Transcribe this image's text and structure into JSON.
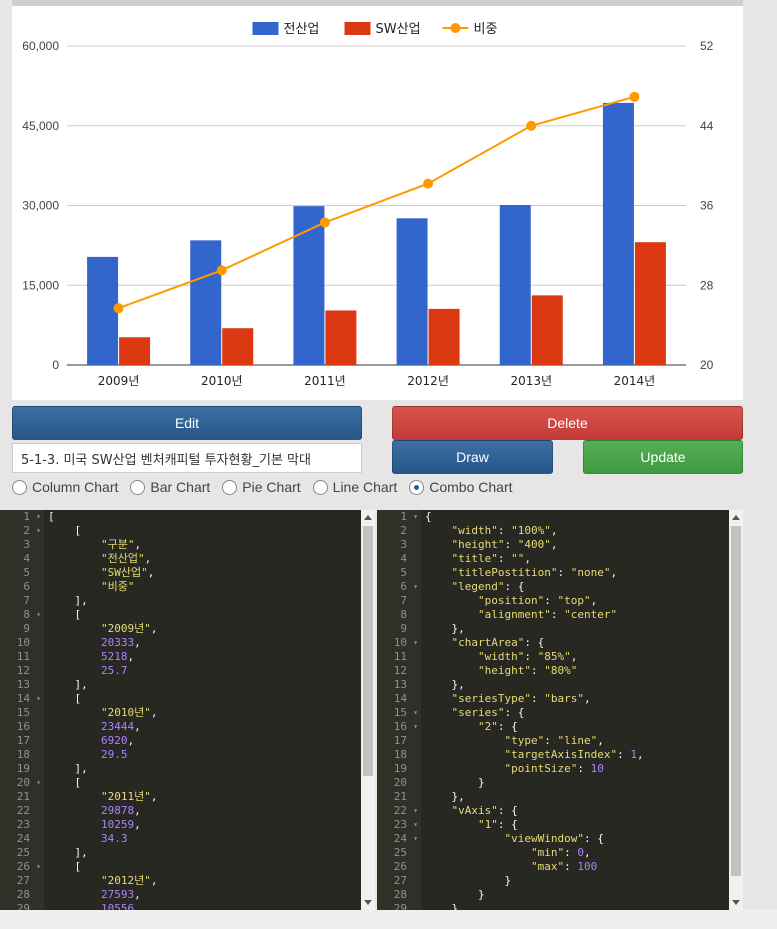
{
  "chart_data": {
    "type": "combo",
    "categories": [
      "2009년",
      "2010년",
      "2011년",
      "2012년",
      "2013년",
      "2014년"
    ],
    "series": [
      {
        "name": "전산업",
        "type": "bar",
        "axis": "left",
        "color": "#3366cc",
        "values": [
          20333,
          23444,
          29878,
          27593,
          30100,
          49300
        ]
      },
      {
        "name": "SW산업",
        "type": "bar",
        "axis": "left",
        "color": "#dc3912",
        "values": [
          5218,
          6920,
          10259,
          10556,
          13100,
          23100
        ]
      },
      {
        "name": "비중",
        "type": "line",
        "axis": "right",
        "color": "#ff9900",
        "values": [
          25.7,
          29.5,
          34.3,
          38.2,
          44.0,
          46.9
        ]
      }
    ],
    "left_axis": {
      "min": 0,
      "max": 60000,
      "ticks": [
        "0",
        "15,000",
        "30,000",
        "45,000",
        "60,000"
      ],
      "tick_values": [
        0,
        15000,
        30000,
        45000,
        60000
      ]
    },
    "right_axis": {
      "min": 20,
      "max": 52,
      "ticks": [
        "20",
        "28",
        "36",
        "44",
        "52"
      ],
      "tick_values": [
        20,
        28,
        36,
        44,
        52
      ]
    },
    "legend_position": "top",
    "grid": true
  },
  "controls": {
    "edit_label": "Edit",
    "delete_label": "Delete",
    "draw_label": "Draw",
    "update_label": "Update",
    "title_value": "5-1-3. 미국 SW산업 벤처캐피털 투자현황_기본 막대",
    "chart_types": [
      {
        "label": "Column Chart",
        "checked": false
      },
      {
        "label": "Bar Chart",
        "checked": false
      },
      {
        "label": "Pie Chart",
        "checked": false
      },
      {
        "label": "Line Chart",
        "checked": false
      },
      {
        "label": "Combo Chart",
        "checked": true
      }
    ]
  },
  "data_editor": {
    "lines": [
      [
        {
          "t": "p",
          "v": "["
        }
      ],
      [
        {
          "t": "p",
          "v": "    ["
        }
      ],
      [
        {
          "t": "p",
          "v": "        "
        },
        {
          "t": "s",
          "v": "\"구분\""
        },
        {
          "t": "p",
          "v": ","
        }
      ],
      [
        {
          "t": "p",
          "v": "        "
        },
        {
          "t": "s",
          "v": "\"전산업\""
        },
        {
          "t": "p",
          "v": ","
        }
      ],
      [
        {
          "t": "p",
          "v": "        "
        },
        {
          "t": "s",
          "v": "\"SW산업\""
        },
        {
          "t": "p",
          "v": ","
        }
      ],
      [
        {
          "t": "p",
          "v": "        "
        },
        {
          "t": "s",
          "v": "\"비중\""
        }
      ],
      [
        {
          "t": "p",
          "v": "    ],"
        }
      ],
      [
        {
          "t": "p",
          "v": "    ["
        }
      ],
      [
        {
          "t": "p",
          "v": "        "
        },
        {
          "t": "s",
          "v": "\"2009년\""
        },
        {
          "t": "p",
          "v": ","
        }
      ],
      [
        {
          "t": "p",
          "v": "        "
        },
        {
          "t": "n",
          "v": "20333"
        },
        {
          "t": "p",
          "v": ","
        }
      ],
      [
        {
          "t": "p",
          "v": "        "
        },
        {
          "t": "n",
          "v": "5218"
        },
        {
          "t": "p",
          "v": ","
        }
      ],
      [
        {
          "t": "p",
          "v": "        "
        },
        {
          "t": "n",
          "v": "25.7"
        }
      ],
      [
        {
          "t": "p",
          "v": "    ],"
        }
      ],
      [
        {
          "t": "p",
          "v": "    ["
        }
      ],
      [
        {
          "t": "p",
          "v": "        "
        },
        {
          "t": "s",
          "v": "\"2010년\""
        },
        {
          "t": "p",
          "v": ","
        }
      ],
      [
        {
          "t": "p",
          "v": "        "
        },
        {
          "t": "n",
          "v": "23444"
        },
        {
          "t": "p",
          "v": ","
        }
      ],
      [
        {
          "t": "p",
          "v": "        "
        },
        {
          "t": "n",
          "v": "6920"
        },
        {
          "t": "p",
          "v": ","
        }
      ],
      [
        {
          "t": "p",
          "v": "        "
        },
        {
          "t": "n",
          "v": "29.5"
        }
      ],
      [
        {
          "t": "p",
          "v": "    ],"
        }
      ],
      [
        {
          "t": "p",
          "v": "    ["
        }
      ],
      [
        {
          "t": "p",
          "v": "        "
        },
        {
          "t": "s",
          "v": "\"2011년\""
        },
        {
          "t": "p",
          "v": ","
        }
      ],
      [
        {
          "t": "p",
          "v": "        "
        },
        {
          "t": "n",
          "v": "29878"
        },
        {
          "t": "p",
          "v": ","
        }
      ],
      [
        {
          "t": "p",
          "v": "        "
        },
        {
          "t": "n",
          "v": "10259"
        },
        {
          "t": "p",
          "v": ","
        }
      ],
      [
        {
          "t": "p",
          "v": "        "
        },
        {
          "t": "n",
          "v": "34.3"
        }
      ],
      [
        {
          "t": "p",
          "v": "    ],"
        }
      ],
      [
        {
          "t": "p",
          "v": "    ["
        }
      ],
      [
        {
          "t": "p",
          "v": "        "
        },
        {
          "t": "s",
          "v": "\"2012년\""
        },
        {
          "t": "p",
          "v": ","
        }
      ],
      [
        {
          "t": "p",
          "v": "        "
        },
        {
          "t": "n",
          "v": "27593"
        },
        {
          "t": "p",
          "v": ","
        }
      ],
      [
        {
          "t": "p",
          "v": "        "
        },
        {
          "t": "n",
          "v": "10556"
        }
      ]
    ],
    "folds": [
      1,
      2,
      8,
      14,
      20,
      26
    ]
  },
  "options_editor": {
    "lines": [
      [
        {
          "t": "p",
          "v": "{"
        }
      ],
      [
        {
          "t": "p",
          "v": "    "
        },
        {
          "t": "s",
          "v": "\"width\""
        },
        {
          "t": "p",
          "v": ": "
        },
        {
          "t": "s",
          "v": "\"100%\""
        },
        {
          "t": "p",
          "v": ","
        }
      ],
      [
        {
          "t": "p",
          "v": "    "
        },
        {
          "t": "s",
          "v": "\"height\""
        },
        {
          "t": "p",
          "v": ": "
        },
        {
          "t": "s",
          "v": "\"400\""
        },
        {
          "t": "p",
          "v": ","
        }
      ],
      [
        {
          "t": "p",
          "v": "    "
        },
        {
          "t": "s",
          "v": "\"title\""
        },
        {
          "t": "p",
          "v": ": "
        },
        {
          "t": "s",
          "v": "\"\""
        },
        {
          "t": "p",
          "v": ","
        }
      ],
      [
        {
          "t": "p",
          "v": "    "
        },
        {
          "t": "s",
          "v": "\"titlePostition\""
        },
        {
          "t": "p",
          "v": ": "
        },
        {
          "t": "s",
          "v": "\"none\""
        },
        {
          "t": "p",
          "v": ","
        }
      ],
      [
        {
          "t": "p",
          "v": "    "
        },
        {
          "t": "s",
          "v": "\"legend\""
        },
        {
          "t": "p",
          "v": ": {"
        }
      ],
      [
        {
          "t": "p",
          "v": "        "
        },
        {
          "t": "s",
          "v": "\"position\""
        },
        {
          "t": "p",
          "v": ": "
        },
        {
          "t": "s",
          "v": "\"top\""
        },
        {
          "t": "p",
          "v": ","
        }
      ],
      [
        {
          "t": "p",
          "v": "        "
        },
        {
          "t": "s",
          "v": "\"alignment\""
        },
        {
          "t": "p",
          "v": ": "
        },
        {
          "t": "s",
          "v": "\"center\""
        }
      ],
      [
        {
          "t": "p",
          "v": "    },"
        }
      ],
      [
        {
          "t": "p",
          "v": "    "
        },
        {
          "t": "s",
          "v": "\"chartArea\""
        },
        {
          "t": "p",
          "v": ": {"
        }
      ],
      [
        {
          "t": "p",
          "v": "        "
        },
        {
          "t": "s",
          "v": "\"width\""
        },
        {
          "t": "p",
          "v": ": "
        },
        {
          "t": "s",
          "v": "\"85%\""
        },
        {
          "t": "p",
          "v": ","
        }
      ],
      [
        {
          "t": "p",
          "v": "        "
        },
        {
          "t": "s",
          "v": "\"height\""
        },
        {
          "t": "p",
          "v": ": "
        },
        {
          "t": "s",
          "v": "\"80%\""
        }
      ],
      [
        {
          "t": "p",
          "v": "    },"
        }
      ],
      [
        {
          "t": "p",
          "v": "    "
        },
        {
          "t": "s",
          "v": "\"seriesType\""
        },
        {
          "t": "p",
          "v": ": "
        },
        {
          "t": "s",
          "v": "\"bars\""
        },
        {
          "t": "p",
          "v": ","
        }
      ],
      [
        {
          "t": "p",
          "v": "    "
        },
        {
          "t": "s",
          "v": "\"series\""
        },
        {
          "t": "p",
          "v": ": {"
        }
      ],
      [
        {
          "t": "p",
          "v": "        "
        },
        {
          "t": "s",
          "v": "\"2\""
        },
        {
          "t": "p",
          "v": ": {"
        }
      ],
      [
        {
          "t": "p",
          "v": "            "
        },
        {
          "t": "s",
          "v": "\"type\""
        },
        {
          "t": "p",
          "v": ": "
        },
        {
          "t": "s",
          "v": "\"line\""
        },
        {
          "t": "p",
          "v": ","
        }
      ],
      [
        {
          "t": "p",
          "v": "            "
        },
        {
          "t": "s",
          "v": "\"targetAxisIndex\""
        },
        {
          "t": "p",
          "v": ": "
        },
        {
          "t": "n",
          "v": "1"
        },
        {
          "t": "p",
          "v": ","
        }
      ],
      [
        {
          "t": "p",
          "v": "            "
        },
        {
          "t": "s",
          "v": "\"pointSize\""
        },
        {
          "t": "p",
          "v": ": "
        },
        {
          "t": "n",
          "v": "10"
        }
      ],
      [
        {
          "t": "p",
          "v": "        }"
        }
      ],
      [
        {
          "t": "p",
          "v": "    },"
        }
      ],
      [
        {
          "t": "p",
          "v": "    "
        },
        {
          "t": "s",
          "v": "\"vAxis\""
        },
        {
          "t": "p",
          "v": ": {"
        }
      ],
      [
        {
          "t": "p",
          "v": "        "
        },
        {
          "t": "s",
          "v": "\"1\""
        },
        {
          "t": "p",
          "v": ": {"
        }
      ],
      [
        {
          "t": "p",
          "v": "            "
        },
        {
          "t": "s",
          "v": "\"viewWindow\""
        },
        {
          "t": "p",
          "v": ": {"
        }
      ],
      [
        {
          "t": "p",
          "v": "                "
        },
        {
          "t": "s",
          "v": "\"min\""
        },
        {
          "t": "p",
          "v": ": "
        },
        {
          "t": "n",
          "v": "0"
        },
        {
          "t": "p",
          "v": ","
        }
      ],
      [
        {
          "t": "p",
          "v": "                "
        },
        {
          "t": "s",
          "v": "\"max\""
        },
        {
          "t": "p",
          "v": ": "
        },
        {
          "t": "n",
          "v": "100"
        }
      ],
      [
        {
          "t": "p",
          "v": "            }"
        }
      ],
      [
        {
          "t": "p",
          "v": "        }"
        }
      ],
      [
        {
          "t": "p",
          "v": "    }"
        }
      ]
    ],
    "folds": [
      1,
      6,
      10,
      15,
      16,
      22,
      23,
      24
    ]
  }
}
